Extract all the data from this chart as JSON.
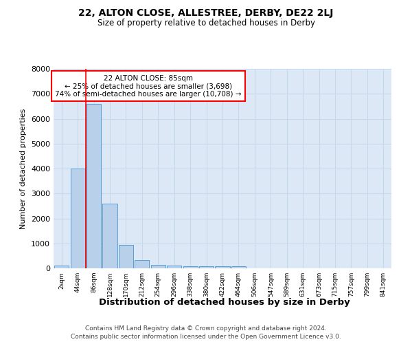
{
  "title": "22, ALTON CLOSE, ALLESTREE, DERBY, DE22 2LJ",
  "subtitle": "Size of property relative to detached houses in Derby",
  "xlabel": "Distribution of detached houses by size in Derby",
  "ylabel": "Number of detached properties",
  "categories": [
    "2sqm",
    "44sqm",
    "86sqm",
    "128sqm",
    "170sqm",
    "212sqm",
    "254sqm",
    "296sqm",
    "338sqm",
    "380sqm",
    "422sqm",
    "464sqm",
    "506sqm",
    "547sqm",
    "589sqm",
    "631sqm",
    "673sqm",
    "715sqm",
    "757sqm",
    "799sqm",
    "841sqm"
  ],
  "bar_heights": [
    100,
    4000,
    6600,
    2600,
    950,
    320,
    130,
    120,
    80,
    70,
    70,
    70,
    0,
    0,
    0,
    0,
    0,
    0,
    0,
    0,
    0
  ],
  "bar_color": "#b8d0ea",
  "bar_edge_color": "#5a9fd4",
  "grid_color": "#c8d8ec",
  "background_color": "#dce8f5",
  "red_line_bar_index": 2,
  "annotation_title": "22 ALTON CLOSE: 85sqm",
  "annotation_line1": "← 25% of detached houses are smaller (3,698)",
  "annotation_line2": "74% of semi-detached houses are larger (10,708) →",
  "ylim": [
    0,
    8000
  ],
  "yticks": [
    0,
    1000,
    2000,
    3000,
    4000,
    5000,
    6000,
    7000,
    8000
  ],
  "footer1": "Contains HM Land Registry data © Crown copyright and database right 2024.",
  "footer2": "Contains public sector information licensed under the Open Government Licence v3.0."
}
